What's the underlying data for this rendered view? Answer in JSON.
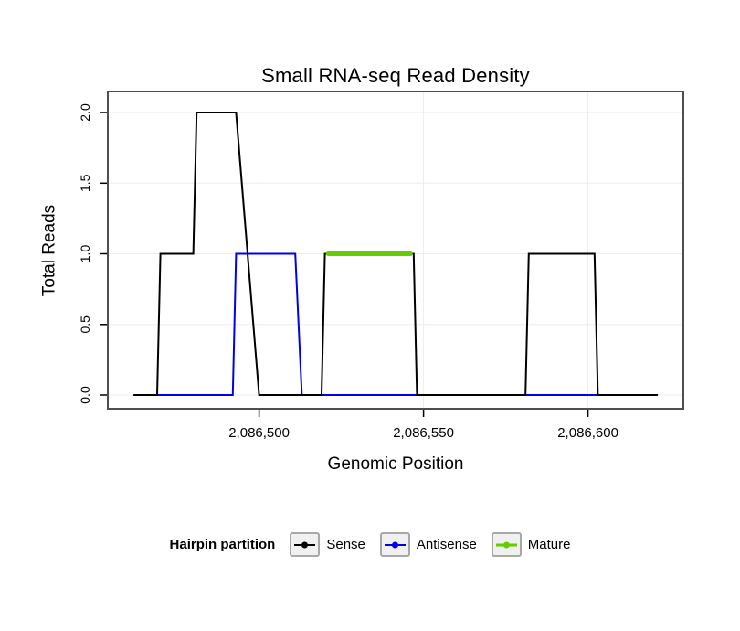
{
  "figure": {
    "background": "#ffffff"
  },
  "chart_data": {
    "type": "line",
    "title": "Small RNA-seq Read Density",
    "xlabel": "Genomic Position",
    "ylabel": "Total Reads",
    "xlim": [
      2086454,
      2086629
    ],
    "ylim": [
      -0.097,
      2.149
    ],
    "grid": true,
    "grid_color": "#ededed",
    "frame_color": "#4f4f4f",
    "x_ticks": [
      {
        "value": 2086500,
        "label": "2,086,500"
      },
      {
        "value": 2086550,
        "label": "2,086,550"
      },
      {
        "value": 2086600,
        "label": "2,086,600"
      }
    ],
    "y_ticks": [
      {
        "value": 0.0,
        "label": "0.0"
      },
      {
        "value": 0.5,
        "label": "0.5"
      },
      {
        "value": 1.0,
        "label": "1.0"
      },
      {
        "value": 1.5,
        "label": "1.5"
      },
      {
        "value": 2.0,
        "label": "2.0"
      }
    ],
    "legend": {
      "title": "Hairpin partition",
      "position": "bottom",
      "entries": [
        "Sense",
        "Antisense",
        "Mature"
      ]
    },
    "series": [
      {
        "name": "Antisense",
        "color": "#0000EE",
        "width": 2,
        "points": [
          [
            2086467,
            0
          ],
          [
            2086492,
            0
          ],
          [
            2086493,
            1
          ],
          [
            2086511,
            1
          ],
          [
            2086513,
            0
          ],
          [
            2086621,
            0
          ]
        ]
      },
      {
        "name": "Sense",
        "color": "#000000",
        "width": 2,
        "points": [
          [
            2086462,
            0
          ],
          [
            2086469,
            0
          ],
          [
            2086470,
            1
          ],
          [
            2086480,
            1
          ],
          [
            2086481,
            2
          ],
          [
            2086493,
            2
          ],
          [
            2086500,
            0
          ],
          [
            2086519,
            0
          ],
          [
            2086520,
            1
          ],
          [
            2086547,
            1
          ],
          [
            2086548,
            0
          ],
          [
            2086581,
            0
          ],
          [
            2086582,
            1
          ],
          [
            2086602,
            1
          ],
          [
            2086603,
            0
          ],
          [
            2086621,
            0
          ]
        ]
      },
      {
        "name": "Mature",
        "color": "#66CC00",
        "width": 5,
        "points": [
          [
            2086521,
            1
          ],
          [
            2086546,
            1
          ]
        ]
      }
    ]
  }
}
